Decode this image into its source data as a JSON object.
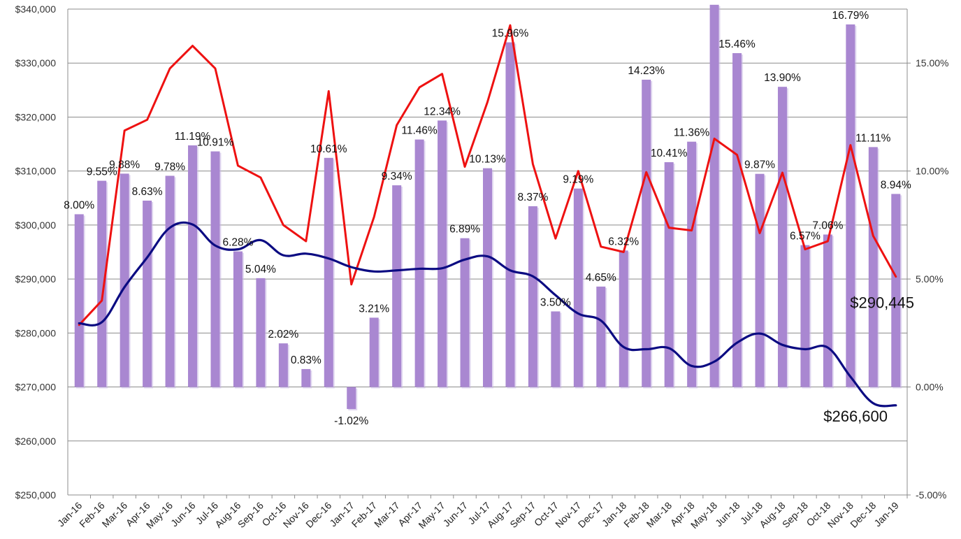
{
  "chart_data": {
    "type": "bar",
    "categories": [
      "Jan-16",
      "Feb-16",
      "Mar-16",
      "Apr-16",
      "May-16",
      "Jun-16",
      "Jul-16",
      "Aug-16",
      "Sep-16",
      "Oct-16",
      "Nov-16",
      "Dec-16",
      "Jan-17",
      "Feb-17",
      "Mar-17",
      "Apr-17",
      "May-17",
      "Jun-17",
      "Jul-17",
      "Aug-17",
      "Sep-17",
      "Oct-17",
      "Nov-17",
      "Dec-17",
      "Jan-18",
      "Feb-18",
      "Mar-18",
      "Apr-18",
      "May-18",
      "Jun-18",
      "Jul-18",
      "Aug-18",
      "Sep-18",
      "Oct-18",
      "Nov-18",
      "Dec-18",
      "Jan-19"
    ],
    "left_axis": {
      "ylim": [
        250000,
        340000
      ],
      "ticks": [
        250000,
        260000,
        270000,
        280000,
        290000,
        300000,
        310000,
        320000,
        330000,
        340000
      ],
      "tick_labels": [
        "$250,000",
        "$260,000",
        "$270,000",
        "$280,000",
        "$290,000",
        "$300,000",
        "$310,000",
        "$320,000",
        "$330,000",
        "$340,000"
      ]
    },
    "right_axis": {
      "ylim": [
        -5,
        17.5
      ],
      "ticks": [
        -5,
        0,
        5,
        10,
        15
      ],
      "tick_labels": [
        "-5.00%",
        "0.00%",
        "5.00%",
        "10.00%",
        "15.00%"
      ]
    },
    "grid": true,
    "series": [
      {
        "kind": "bar",
        "axis": "right",
        "color": "#a987d1",
        "values": [
          8.0,
          9.55,
          9.88,
          8.63,
          9.78,
          11.19,
          10.91,
          6.28,
          5.04,
          2.02,
          0.83,
          10.61,
          -1.02,
          3.21,
          9.34,
          11.46,
          12.34,
          6.89,
          10.13,
          15.96,
          8.37,
          3.5,
          9.19,
          4.65,
          6.32,
          14.23,
          10.41,
          11.36,
          17.7,
          15.46,
          9.87,
          13.9,
          6.57,
          7.06,
          16.79,
          11.11,
          8.94
        ],
        "labels": [
          "8.00%",
          "9.55%",
          "9.88%",
          "8.63%",
          "9.78%",
          "11.19%",
          "10.91%",
          "6.28%",
          "5.04%",
          "2.02%",
          "0.83%",
          "10.61%",
          "-1.02%",
          "3.21%",
          "9.34%",
          "11.46%",
          "12.34%",
          "6.89%",
          "10.13%",
          "15.96%",
          "8.37%",
          "3.50%",
          "9.19%",
          "4.65%",
          "6.32%",
          "14.23%",
          "10.41%",
          "11.36%",
          "",
          "15.46%",
          "9.87%",
          "13.90%",
          "6.57%",
          "7.06%",
          "16.79%",
          "11.11%",
          "8.94%"
        ]
      },
      {
        "kind": "line",
        "axis": "left",
        "color": "#ee1111",
        "values": [
          281500,
          286000,
          317500,
          319500,
          329000,
          333200,
          329000,
          311000,
          308800,
          300000,
          297000,
          324800,
          289000,
          301500,
          318500,
          325500,
          328000,
          310800,
          322800,
          337000,
          311300,
          297500,
          310000,
          296000,
          295000,
          309800,
          299500,
          299000,
          316000,
          313000,
          298500,
          309700,
          295500,
          297000,
          314800,
          298000,
          290445
        ],
        "end_label": "$290,445"
      },
      {
        "kind": "line",
        "axis": "left",
        "color": "#0b0b82",
        "values": [
          281800,
          282000,
          288500,
          294000,
          299500,
          300100,
          296200,
          295500,
          297200,
          294400,
          294700,
          293800,
          292200,
          291400,
          291600,
          291900,
          292000,
          293600,
          294200,
          291600,
          290500,
          287000,
          283600,
          282300,
          277400,
          277000,
          277200,
          273900,
          274700,
          278200,
          279900,
          277800,
          277000,
          277300,
          271900,
          267000,
          266600
        ],
        "end_label": "$266,600"
      }
    ]
  }
}
